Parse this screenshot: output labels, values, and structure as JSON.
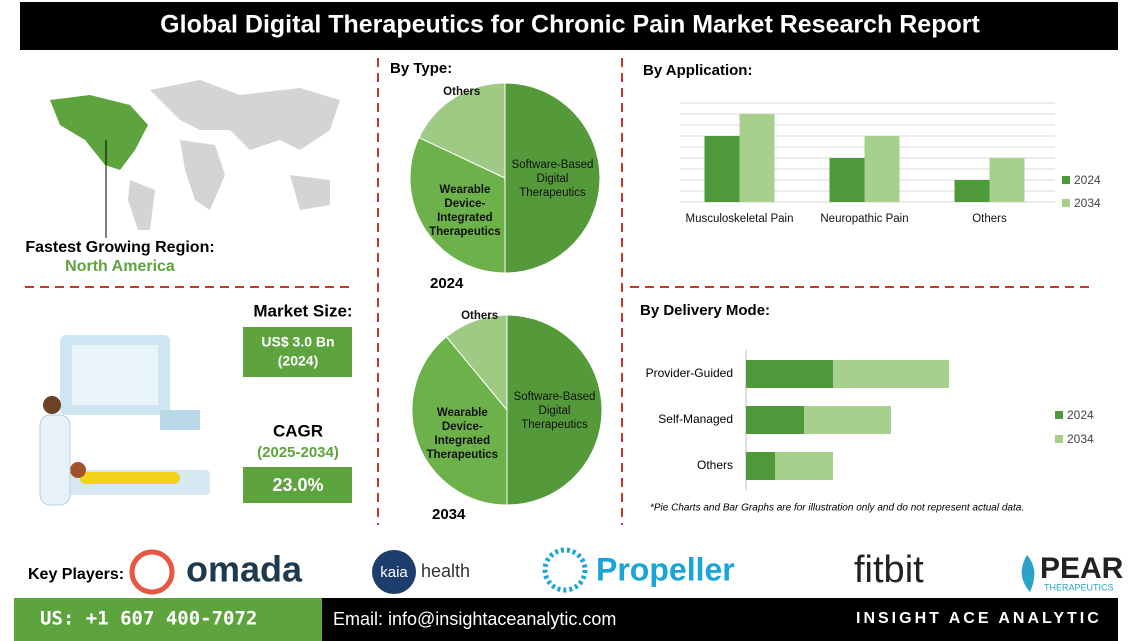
{
  "header": {
    "title": "Global Digital Therapeutics for Chronic Pain Market Research Report"
  },
  "region": {
    "label": "Fastest Growing Region:",
    "value": "North America"
  },
  "market": {
    "size_label": "Market Size:",
    "size_value": "US$ 3.0 Bn",
    "size_year": "(2024)",
    "cagr_label": "CAGR",
    "cagr_period": "(2025-2034)",
    "cagr_value": "23.0%"
  },
  "headings": {
    "type": "By Type:",
    "application": "By Application:",
    "delivery": "By Delivery Mode:"
  },
  "note": "*Pie Charts and Bar Graphs are for illustration only and do not represent actual data.",
  "key_players": {
    "label": "Key Players:",
    "names": [
      "omada",
      "kaia",
      "health",
      "Propeller",
      "fitbit",
      "PEAR",
      "THERAPEUTICS"
    ]
  },
  "footer": {
    "phone": "US: +1 607 400-7072",
    "email": "Email: info@insightaceanalytic.com",
    "brand": "INSIGHT ACE ANALYTIC"
  },
  "chart_data": [
    {
      "type": "pie",
      "title": "2024",
      "categories": [
        "Software-Based Digital Therapeutics",
        "Wearable Device-Integrated Therapeutics",
        "Others"
      ],
      "values": [
        50,
        32,
        18
      ],
      "colors": [
        "#559a3a",
        "#6db14a",
        "#9fca84"
      ]
    },
    {
      "type": "pie",
      "title": "2034",
      "categories": [
        "Software-Based Digital Therapeutics",
        "Wearable Device-Integrated Therapeutics",
        "Others"
      ],
      "values": [
        50,
        39,
        11
      ],
      "colors": [
        "#559a3a",
        "#6db14a",
        "#9fca84"
      ]
    },
    {
      "type": "bar",
      "categories": [
        "Musculoskeletal Pain",
        "Neuropathic Pain",
        "Others"
      ],
      "series": [
        {
          "name": "2024",
          "color": "#4e9a3a",
          "values": [
            6,
            4,
            2
          ]
        },
        {
          "name": "2034",
          "color": "#a6d08c",
          "values": [
            8,
            6,
            4
          ]
        }
      ],
      "ylim": [
        0,
        9
      ],
      "yticks": [
        0,
        1,
        2,
        3,
        4,
        5,
        6,
        7,
        8,
        9
      ],
      "grid": true,
      "legend": "right"
    },
    {
      "type": "stacked-hbar",
      "categories": [
        "Provider-Guided",
        "Self-Managed",
        "Others"
      ],
      "series": [
        {
          "name": "2024",
          "color": "#4e9a3a",
          "values": [
            3,
            2,
            1
          ]
        },
        {
          "name": "2034",
          "color": "#a6d08c",
          "values": [
            4,
            3,
            2
          ]
        }
      ],
      "xlim": [
        0,
        10
      ],
      "legend": "right"
    }
  ]
}
